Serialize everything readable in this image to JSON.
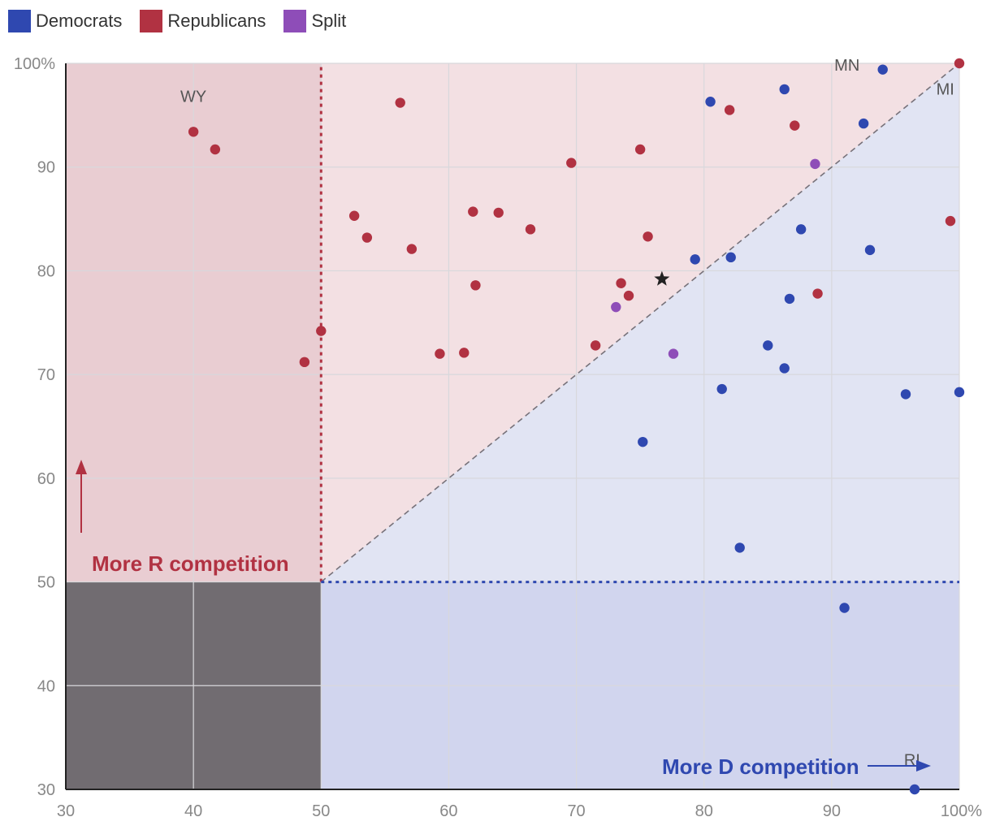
{
  "legend": [
    {
      "label": "Democrats",
      "color": "#2f48b0"
    },
    {
      "label": "Republicans",
      "color": "#b13242"
    },
    {
      "label": "Split",
      "color": "#8e4db8"
    }
  ],
  "annotations": {
    "r_zone": "More R competition",
    "d_zone": "More D competition"
  },
  "state_labels": [
    {
      "text": "WY",
      "x": 40,
      "y": 96.3
    },
    {
      "text": "MN",
      "x": 91.2,
      "y": 99.3
    },
    {
      "text": "MI",
      "x": 98.9,
      "y": 97
    },
    {
      "text": "RI",
      "x": 96.3,
      "y": 32.3
    }
  ],
  "colors": {
    "democrats": "#2f48b0",
    "republicans": "#b13242",
    "split": "#8e4db8",
    "r_zone_fill": "#e9cdd2",
    "upper_fill": "#f3e0e3",
    "lower_fill": "#e1e4f3",
    "d_zone_fill": "#d1d5ee",
    "dead_zone_fill": "#716c71"
  },
  "chart_data": {
    "type": "scatter",
    "xlim": [
      30,
      100
    ],
    "ylim": [
      30,
      100
    ],
    "x_ticks": [
      "30",
      "40",
      "50",
      "60",
      "70",
      "80",
      "90",
      "100%"
    ],
    "y_ticks": [
      "30",
      "40",
      "50",
      "60",
      "70",
      "80",
      "90",
      "100%"
    ],
    "x_tick_values": [
      30,
      40,
      50,
      60,
      70,
      80,
      90,
      100
    ],
    "y_tick_values": [
      30,
      40,
      50,
      60,
      70,
      80,
      90,
      100
    ],
    "grid": true,
    "thresholds": {
      "x": 50,
      "y": 50
    },
    "series": [
      {
        "name": "Democrats",
        "points": [
          [
            80.5,
            96.3
          ],
          [
            86.3,
            97.5
          ],
          [
            94.0,
            99.4
          ],
          [
            92.5,
            94.2
          ],
          [
            87.6,
            84.0
          ],
          [
            79.3,
            81.1
          ],
          [
            82.1,
            81.3
          ],
          [
            93.0,
            82.0
          ],
          [
            86.7,
            77.3
          ],
          [
            85.0,
            72.8
          ],
          [
            86.3,
            70.6
          ],
          [
            81.4,
            68.6
          ],
          [
            95.8,
            68.1
          ],
          [
            100.0,
            68.3
          ],
          [
            75.2,
            63.5
          ],
          [
            82.8,
            53.3
          ],
          [
            91.0,
            47.5
          ],
          [
            96.5,
            30.0
          ]
        ]
      },
      {
        "name": "Republicans",
        "points": [
          [
            40.0,
            93.4
          ],
          [
            41.7,
            91.7
          ],
          [
            48.7,
            71.2
          ],
          [
            50.0,
            74.2
          ],
          [
            52.6,
            85.3
          ],
          [
            53.6,
            83.2
          ],
          [
            56.2,
            96.2
          ],
          [
            57.1,
            82.1
          ],
          [
            59.3,
            72.0
          ],
          [
            61.2,
            72.1
          ],
          [
            61.9,
            85.7
          ],
          [
            62.1,
            78.6
          ],
          [
            63.9,
            85.6
          ],
          [
            66.4,
            84.0
          ],
          [
            69.6,
            90.4
          ],
          [
            71.5,
            72.8
          ],
          [
            73.5,
            78.8
          ],
          [
            74.1,
            77.6
          ],
          [
            75.0,
            91.7
          ],
          [
            75.6,
            83.3
          ],
          [
            82.0,
            95.5
          ],
          [
            87.1,
            94.0
          ],
          [
            88.9,
            77.8
          ],
          [
            99.3,
            84.8
          ],
          [
            100.0,
            100.0
          ]
        ]
      },
      {
        "name": "Split",
        "points": [
          [
            73.1,
            76.5
          ],
          [
            77.6,
            72.0
          ],
          [
            88.7,
            90.3
          ]
        ]
      }
    ],
    "highlight": {
      "marker": "star",
      "x": 76.7,
      "y": 79.2
    }
  }
}
